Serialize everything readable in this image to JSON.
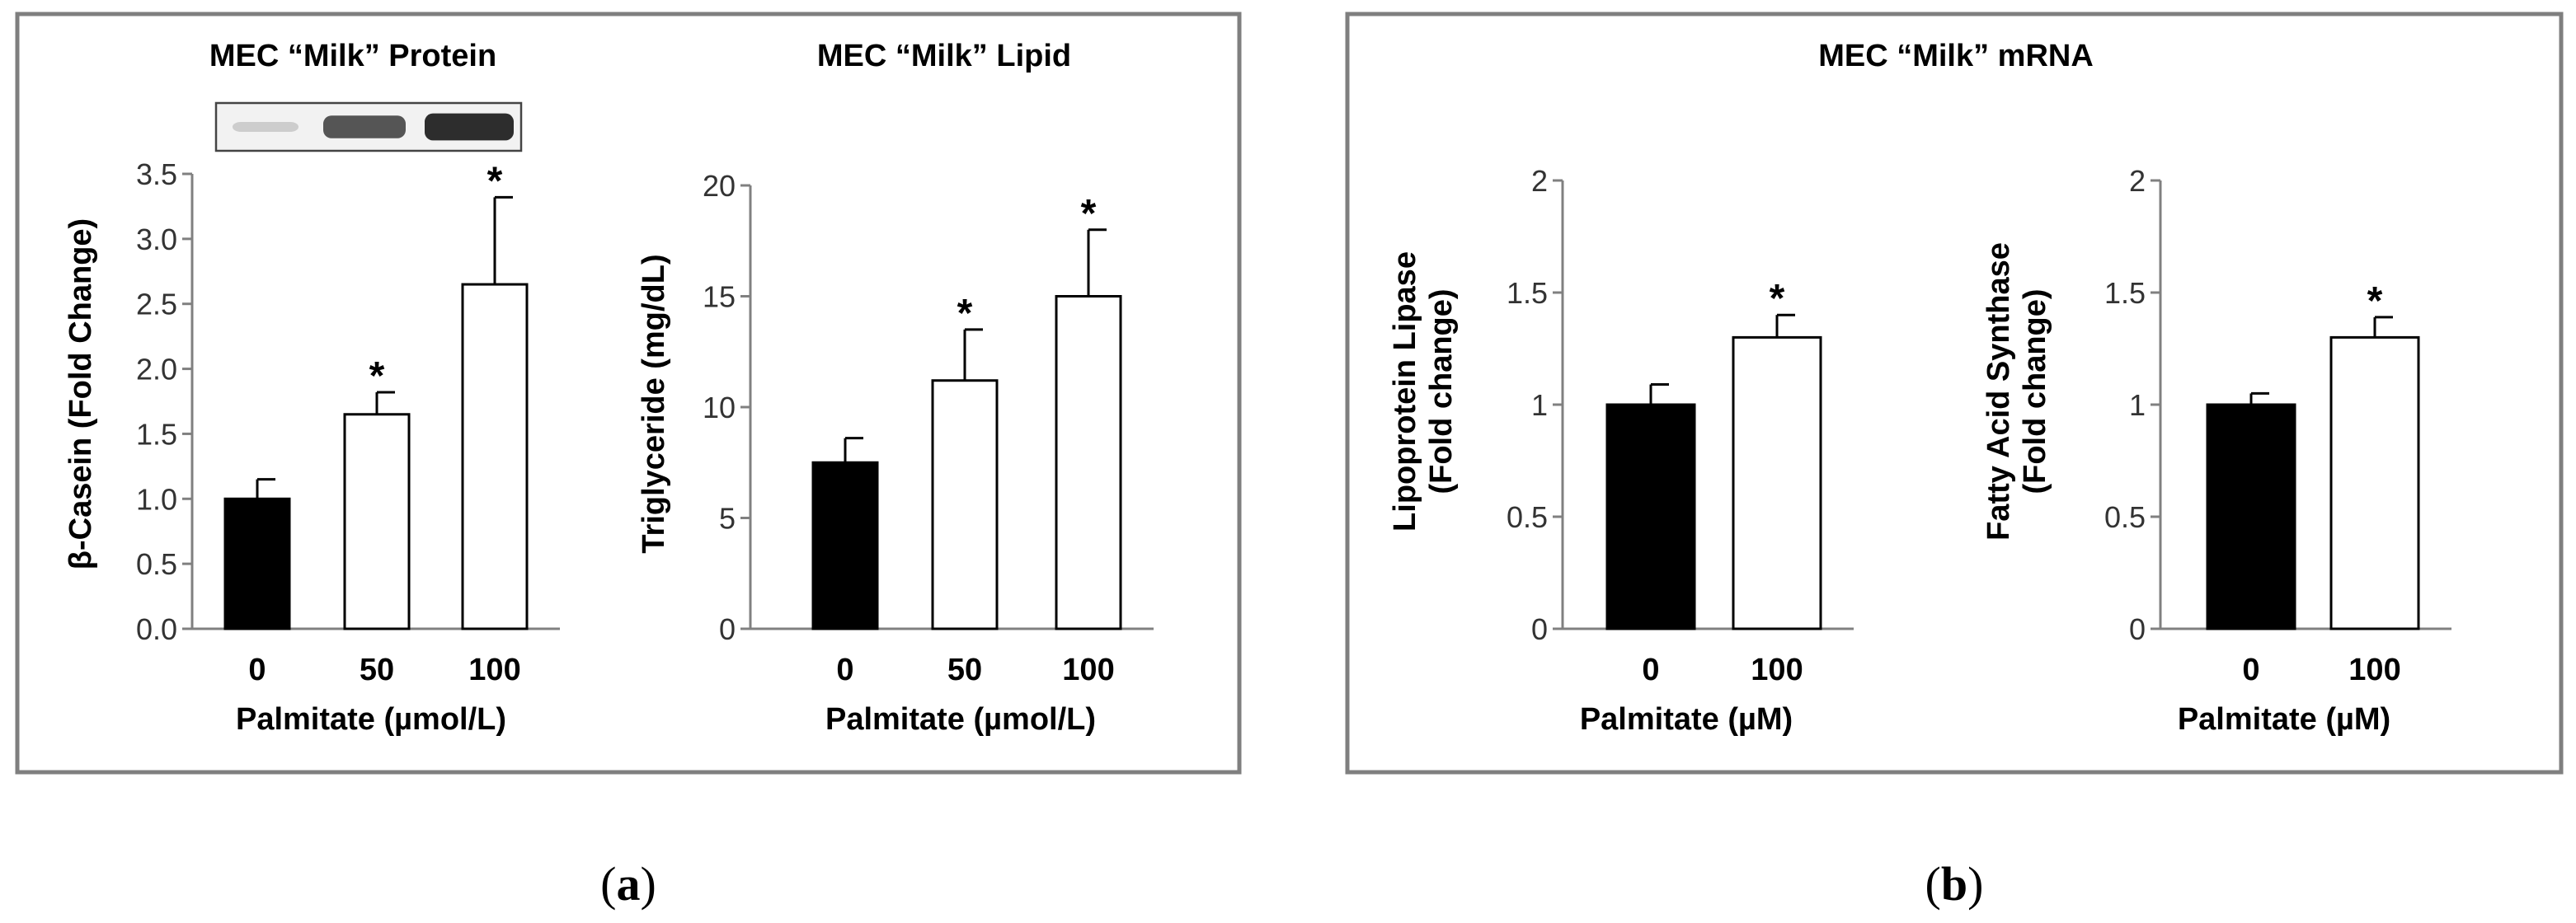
{
  "panels": {
    "a": {
      "label_open": "(",
      "label_letter": "a",
      "label_close": ")"
    },
    "b": {
      "label_open": "(",
      "label_letter": "b",
      "label_close": ")",
      "title": "MEC “Milk” mRNA"
    }
  },
  "colors": {
    "frame": "#7f7f7f",
    "axis": "#808080",
    "control_bar": "#000000",
    "treated_bar": "#ffffff",
    "bar_outline": "#000000",
    "text": "#000000"
  },
  "chart_data": [
    {
      "id": "protein",
      "type": "bar",
      "title": "MEC “Milk” Protein",
      "xlabel": "Palmitate (µmol/L)",
      "ylabel": "β-Casein (Fold Change)",
      "categories": [
        "0",
        "50",
        "100"
      ],
      "values": [
        1.0,
        1.65,
        2.65
      ],
      "errors": [
        0.15,
        0.17,
        0.67
      ],
      "significance": [
        "",
        "*",
        "*"
      ],
      "fills": [
        "#000000",
        "#ffffff",
        "#ffffff"
      ],
      "ylim": [
        0,
        3.5
      ],
      "yticks": [
        "0.0",
        "0.5",
        "1.0",
        "1.5",
        "2.0",
        "2.5",
        "3.0",
        "3.5"
      ],
      "grid": false,
      "western_blot_inset": {
        "band_intensities": [
          0.15,
          0.75,
          0.95
        ]
      }
    },
    {
      "id": "lipid",
      "type": "bar",
      "title": "MEC “Milk” Lipid",
      "xlabel": "Palmitate (µmol/L)",
      "ylabel": "Triglyceride (mg/dL)",
      "categories": [
        "0",
        "50",
        "100"
      ],
      "values": [
        7.5,
        11.2,
        15.0
      ],
      "errors": [
        1.1,
        2.3,
        3.0
      ],
      "significance": [
        "",
        "*",
        "*"
      ],
      "fills": [
        "#000000",
        "#ffffff",
        "#ffffff"
      ],
      "ylim": [
        0,
        20
      ],
      "yticks": [
        "0",
        "5",
        "10",
        "15",
        "20"
      ],
      "grid": false
    },
    {
      "id": "lpl",
      "type": "bar",
      "title": "",
      "xlabel": "Palmitate (µM)",
      "ylabel_lines": [
        "Lipoprotein Lipase",
        "(Fold change)"
      ],
      "categories": [
        "0",
        "100"
      ],
      "values": [
        1.0,
        1.3
      ],
      "errors": [
        0.09,
        0.1
      ],
      "significance": [
        "",
        "*"
      ],
      "fills": [
        "#000000",
        "#ffffff"
      ],
      "ylim": [
        0,
        2
      ],
      "yticks": [
        "0",
        "0.5",
        "1",
        "1.5",
        "2"
      ],
      "grid": false
    },
    {
      "id": "fas",
      "type": "bar",
      "title": "",
      "xlabel": "Palmitate (µM)",
      "ylabel_lines": [
        "Fatty Acid Synthase",
        "(Fold change)"
      ],
      "categories": [
        "0",
        "100"
      ],
      "values": [
        1.0,
        1.3
      ],
      "errors": [
        0.05,
        0.09
      ],
      "significance": [
        "",
        "*"
      ],
      "fills": [
        "#000000",
        "#ffffff"
      ],
      "ylim": [
        0,
        2
      ],
      "yticks": [
        "0",
        "0.5",
        "1",
        "1.5",
        "2"
      ],
      "grid": false
    }
  ]
}
